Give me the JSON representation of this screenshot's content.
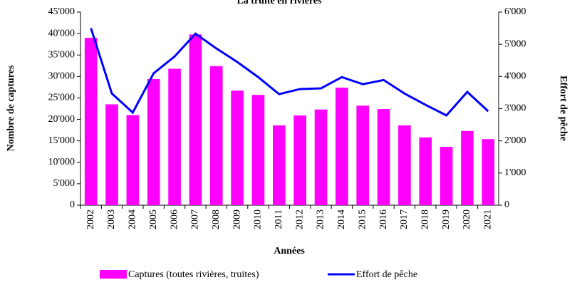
{
  "chart_data": {
    "type": "bar_line",
    "title": "La truite en rivières",
    "x_label": "Années",
    "y_label": "Nombre de captures",
    "y2_label": "Effort de pêche",
    "categories": [
      "2002",
      "2003",
      "2004",
      "2005",
      "2006",
      "2007",
      "2008",
      "2009",
      "2010",
      "2011",
      "2012",
      "2013",
      "2014",
      "2015",
      "2016",
      "2017",
      "2018",
      "2019",
      "2020",
      "2021"
    ],
    "series": [
      {
        "name": "Captures (toutes rivières, truites)",
        "type": "bar",
        "color": "#ff00ff",
        "values": [
          39000,
          23500,
          21000,
          29400,
          31800,
          39800,
          32400,
          26700,
          25700,
          18600,
          20900,
          22300,
          27400,
          23200,
          22400,
          18600,
          15800,
          13600,
          17300,
          15400
        ]
      },
      {
        "name": "Effort de pêche",
        "type": "line",
        "axis": "y2",
        "color": "#0000ff",
        "values": [
          5500,
          3470,
          2880,
          4100,
          4620,
          5330,
          4870,
          4450,
          3980,
          3450,
          3610,
          3630,
          3980,
          3760,
          3890,
          3470,
          3120,
          2790,
          3520,
          2920
        ]
      }
    ],
    "ylim": [
      0,
      45000
    ],
    "yticks": [
      0,
      {
        "value": 5000,
        "label": "5'000"
      },
      {
        "value": 10000,
        "label": "10'000"
      },
      {
        "value": 15000,
        "label": "15'000"
      },
      {
        "value": 20000,
        "label": "20'000"
      },
      {
        "value": 25000,
        "label": "25'000"
      },
      {
        "value": 30000,
        "label": "30'000"
      },
      {
        "value": 35000,
        "label": "35'000"
      },
      {
        "value": 40000,
        "label": "40'000"
      },
      {
        "value": 45000,
        "label": "45'000"
      }
    ],
    "y2lim": [
      0,
      6000
    ],
    "y2ticks": [
      0,
      {
        "value": 1000,
        "label": "1'000"
      },
      {
        "value": 2000,
        "label": "2'000"
      },
      {
        "value": 3000,
        "label": "3'000"
      },
      {
        "value": 4000,
        "label": "4'000"
      },
      {
        "value": 5000,
        "label": "5'000"
      },
      {
        "value": 6000,
        "label": "6'000"
      }
    ],
    "legend": "bottom"
  }
}
